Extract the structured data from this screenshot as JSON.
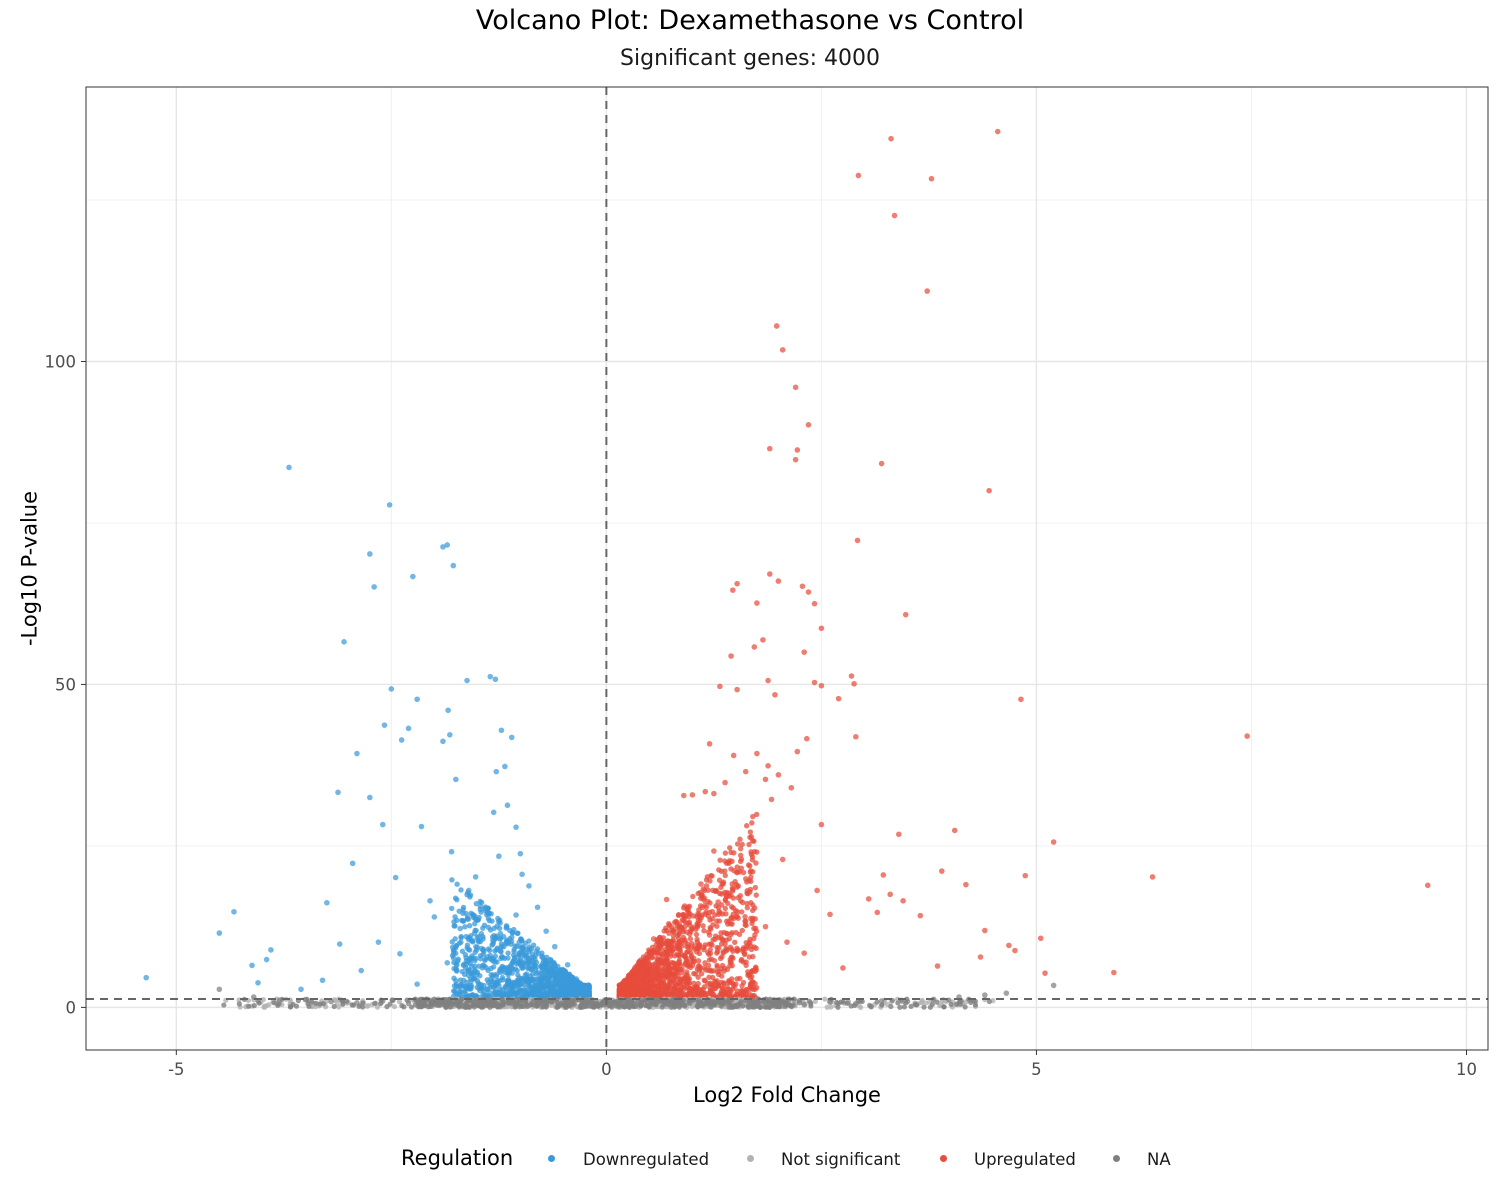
{
  "chart_data": {
    "type": "scatter",
    "title": "Volcano Plot: Dexamethasone vs Control",
    "subtitle": "Significant genes: 4000",
    "xlabel": "Log2 Fold Change",
    "ylabel": "-Log10 P-value",
    "xlim": [
      -6.05,
      10.25
    ],
    "ylim": [
      -6.6,
      142.5
    ],
    "xticks": [
      -5,
      0,
      5,
      10
    ],
    "xtick_labels": [
      "-5",
      "0",
      "5",
      "10"
    ],
    "yticks": [
      0,
      50,
      100
    ],
    "ytick_labels": [
      "0",
      "50",
      "100"
    ],
    "grid": true,
    "reference_lines": {
      "vertical_x": 0,
      "horizontal_y": 1.3
    },
    "legend": {
      "title": "Regulation",
      "placement": "bottom",
      "entries": [
        {
          "label": "Downregulated",
          "color": "#3a9ad9"
        },
        {
          "label": "Not significant",
          "color": "#b3b3b3"
        },
        {
          "label": "Upregulated",
          "color": "#e74c3c"
        },
        {
          "label": "NA",
          "color": "#7f7f7f"
        }
      ]
    },
    "series": [
      {
        "name": "Downregulated",
        "color": "#3a9ad9",
        "points": [
          [
            -5.35,
            4.6
          ],
          [
            -4.5,
            11.5
          ],
          [
            -4.33,
            14.8
          ],
          [
            -4.12,
            6.5
          ],
          [
            -4.05,
            3.8
          ],
          [
            -3.95,
            7.4
          ],
          [
            -3.9,
            8.9
          ],
          [
            -3.69,
            83.6
          ],
          [
            -3.55,
            2.8
          ],
          [
            -3.25,
            16.2
          ],
          [
            -3.12,
            33.3
          ],
          [
            -3.05,
            56.6
          ],
          [
            -2.95,
            22.3
          ],
          [
            -2.9,
            39.3
          ],
          [
            -2.75,
            70.2
          ],
          [
            -2.75,
            32.5
          ],
          [
            -2.7,
            65.1
          ],
          [
            -2.6,
            28.3
          ],
          [
            -2.58,
            43.7
          ],
          [
            -2.52,
            77.8
          ],
          [
            -2.5,
            49.3
          ],
          [
            -2.45,
            20.1
          ],
          [
            -2.38,
            41.4
          ],
          [
            -2.25,
            66.7
          ],
          [
            -2.2,
            47.7
          ],
          [
            -2.3,
            43.2
          ],
          [
            -2.15,
            28.0
          ],
          [
            -2.05,
            16.5
          ],
          [
            -1.9,
            71.3
          ],
          [
            -1.85,
            71.6
          ],
          [
            -1.84,
            46.0
          ],
          [
            -1.82,
            42.2
          ],
          [
            -1.78,
            68.4
          ],
          [
            -1.75,
            35.3
          ],
          [
            -1.9,
            41.2
          ],
          [
            -1.8,
            24.1
          ],
          [
            -1.62,
            50.6
          ],
          [
            -1.52,
            20.2
          ],
          [
            -1.35,
            51.2
          ],
          [
            -1.29,
            50.8
          ],
          [
            -1.31,
            30.2
          ],
          [
            -1.22,
            42.9
          ],
          [
            -1.15,
            31.3
          ],
          [
            -1.1,
            41.8
          ],
          [
            -1.05,
            27.9
          ],
          [
            -1.18,
            37.3
          ],
          [
            -1.25,
            23.4
          ],
          [
            -1.28,
            36.5
          ],
          [
            -1.0,
            23.8
          ],
          [
            -0.98,
            20.6
          ],
          [
            -0.9,
            18.8
          ],
          [
            -0.8,
            15.5
          ],
          [
            -1.6,
            18.1
          ],
          [
            -1.7,
            12.2
          ],
          [
            -2.0,
            14.0
          ],
          [
            -2.4,
            8.3
          ],
          [
            -2.65,
            10.1
          ],
          [
            -2.85,
            5.7
          ],
          [
            -3.1,
            9.8
          ],
          [
            -3.3,
            4.2
          ],
          [
            -1.45,
            9.1
          ],
          [
            -1.05,
            14.3
          ],
          [
            -0.7,
            11.8
          ],
          [
            -0.6,
            9.4
          ],
          [
            -0.45,
            6.6
          ],
          [
            -0.35,
            4.4
          ],
          [
            -0.25,
            2.8
          ],
          [
            -0.75,
            5.2
          ],
          [
            -0.9,
            7.5
          ],
          [
            -1.2,
            5.8
          ],
          [
            -1.5,
            4.1
          ],
          [
            -1.85,
            6.9
          ],
          [
            -2.2,
            3.6
          ]
        ]
      },
      {
        "name": "Upregulated",
        "color": "#e74c3c",
        "points": [
          [
            4.55,
            135.6
          ],
          [
            3.31,
            134.5
          ],
          [
            2.93,
            128.8
          ],
          [
            3.78,
            128.3
          ],
          [
            3.35,
            122.6
          ],
          [
            3.73,
            110.9
          ],
          [
            1.98,
            105.5
          ],
          [
            2.05,
            101.8
          ],
          [
            2.2,
            96.0
          ],
          [
            2.35,
            90.2
          ],
          [
            1.9,
            86.5
          ],
          [
            2.22,
            86.3
          ],
          [
            2.2,
            84.8
          ],
          [
            3.2,
            84.2
          ],
          [
            4.45,
            80.0
          ],
          [
            2.92,
            72.3
          ],
          [
            1.9,
            67.1
          ],
          [
            2.0,
            66.0
          ],
          [
            1.52,
            65.6
          ],
          [
            1.47,
            64.6
          ],
          [
            2.28,
            65.2
          ],
          [
            2.35,
            64.3
          ],
          [
            1.75,
            62.6
          ],
          [
            2.42,
            62.5
          ],
          [
            3.48,
            60.8
          ],
          [
            2.5,
            58.7
          ],
          [
            1.82,
            56.9
          ],
          [
            1.72,
            55.8
          ],
          [
            2.3,
            55.0
          ],
          [
            1.45,
            54.4
          ],
          [
            2.85,
            51.3
          ],
          [
            2.88,
            50.1
          ],
          [
            2.42,
            50.3
          ],
          [
            1.88,
            50.6
          ],
          [
            1.32,
            49.7
          ],
          [
            2.5,
            49.8
          ],
          [
            1.52,
            49.2
          ],
          [
            1.96,
            48.4
          ],
          [
            2.7,
            47.8
          ],
          [
            4.82,
            47.7
          ],
          [
            7.45,
            42.0
          ],
          [
            2.9,
            41.9
          ],
          [
            2.33,
            41.6
          ],
          [
            1.2,
            40.8
          ],
          [
            2.22,
            39.6
          ],
          [
            1.75,
            39.3
          ],
          [
            1.48,
            39.0
          ],
          [
            1.88,
            37.4
          ],
          [
            1.62,
            36.5
          ],
          [
            1.38,
            34.8
          ],
          [
            2.0,
            36.0
          ],
          [
            1.85,
            35.3
          ],
          [
            1.15,
            33.4
          ],
          [
            1.25,
            33.1
          ],
          [
            0.9,
            32.8
          ],
          [
            1.0,
            32.9
          ],
          [
            1.92,
            32.2
          ],
          [
            2.15,
            34.0
          ],
          [
            2.5,
            28.3
          ],
          [
            3.4,
            26.8
          ],
          [
            4.05,
            27.4
          ],
          [
            5.2,
            25.6
          ],
          [
            6.35,
            20.2
          ],
          [
            9.55,
            18.9
          ],
          [
            4.87,
            20.4
          ],
          [
            3.22,
            20.5
          ],
          [
            4.18,
            19.0
          ],
          [
            3.9,
            21.1
          ],
          [
            3.3,
            17.5
          ],
          [
            3.05,
            16.8
          ],
          [
            3.15,
            14.7
          ],
          [
            3.65,
            14.2
          ],
          [
            3.45,
            16.5
          ],
          [
            4.4,
            11.9
          ],
          [
            4.68,
            9.6
          ],
          [
            5.05,
            10.7
          ],
          [
            4.75,
            8.8
          ],
          [
            5.1,
            5.3
          ],
          [
            5.9,
            5.4
          ],
          [
            4.35,
            7.8
          ],
          [
            3.85,
            6.4
          ],
          [
            2.75,
            6.1
          ],
          [
            2.3,
            8.4
          ],
          [
            2.1,
            10.1
          ],
          [
            1.85,
            12.5
          ],
          [
            2.6,
            14.4
          ],
          [
            2.45,
            18.1
          ],
          [
            2.05,
            22.9
          ],
          [
            1.7,
            25.8
          ],
          [
            1.55,
            21.0
          ],
          [
            1.25,
            24.2
          ],
          [
            1.1,
            19.1
          ],
          [
            1.3,
            16.3
          ],
          [
            0.95,
            14.8
          ],
          [
            0.8,
            12.1
          ],
          [
            0.72,
            9.4
          ],
          [
            0.6,
            7.3
          ],
          [
            0.5,
            5.6
          ],
          [
            0.42,
            4.1
          ],
          [
            0.32,
            3.0
          ],
          [
            0.25,
            2.2
          ],
          [
            0.65,
            4.9
          ],
          [
            0.85,
            6.8
          ],
          [
            1.05,
            8.6
          ],
          [
            1.2,
            11.2
          ],
          [
            1.45,
            13.8
          ],
          [
            0.7,
            16.7
          ],
          [
            0.55,
            10.6
          ]
        ]
      },
      {
        "name": "NA",
        "color": "#7f7f7f",
        "points": [
          [
            -4.5,
            2.8
          ],
          [
            -4.1,
            1.6
          ],
          [
            -3.8,
            1.1
          ],
          [
            -3.5,
            1.2
          ],
          [
            -3.2,
            0.9
          ],
          [
            -2.9,
            0.7
          ],
          [
            -2.6,
            1.0
          ],
          [
            -2.3,
            0.6
          ],
          [
            -2.0,
            0.5
          ],
          [
            -1.7,
            0.8
          ],
          [
            -1.4,
            0.4
          ],
          [
            -1.1,
            0.6
          ],
          [
            -0.8,
            0.3
          ],
          [
            -0.5,
            0.4
          ],
          [
            -0.2,
            0.2
          ],
          [
            0.2,
            0.2
          ],
          [
            0.5,
            0.4
          ],
          [
            0.8,
            0.5
          ],
          [
            1.1,
            0.3
          ],
          [
            1.4,
            0.6
          ],
          [
            1.7,
            0.5
          ],
          [
            2.0,
            0.7
          ],
          [
            2.3,
            0.4
          ],
          [
            2.6,
            0.8
          ],
          [
            2.9,
            0.6
          ],
          [
            3.2,
            1.0
          ],
          [
            3.5,
            0.9
          ],
          [
            3.8,
            1.2
          ],
          [
            4.1,
            1.6
          ],
          [
            4.4,
            1.9
          ],
          [
            4.65,
            2.2
          ],
          [
            5.2,
            3.4
          ]
        ]
      }
    ]
  }
}
